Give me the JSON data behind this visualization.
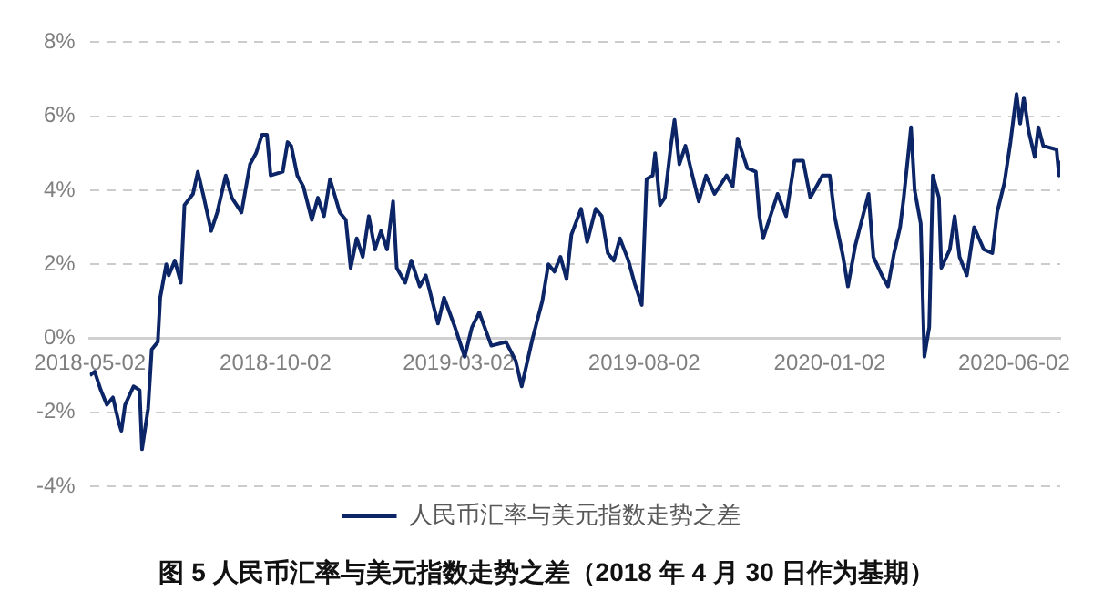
{
  "chart_data": {
    "type": "line",
    "title": "图 5 人民币汇率与美元指数走势之差（2018 年 4 月 30 日作为基期）",
    "xlim": [
      "2018-05-02",
      "2020-07-10"
    ],
    "xticks": [
      "2018-05-02",
      "2018-10-02",
      "2019-03-02",
      "2019-08-02",
      "2020-01-02",
      "2020-06-02"
    ],
    "ylim": [
      -4,
      8
    ],
    "yticks": [
      {
        "value": -4,
        "label": "-4%"
      },
      {
        "value": -2,
        "label": "-2%"
      },
      {
        "value": 0,
        "label": "0%"
      },
      {
        "value": 2,
        "label": "2%"
      },
      {
        "value": 4,
        "label": "4%"
      },
      {
        "value": 6,
        "label": "6%"
      },
      {
        "value": 8,
        "label": "8%"
      }
    ],
    "grid": "y",
    "legend": "bottom",
    "marker": "none",
    "line_style": "solid",
    "series": [
      {
        "name": "人民币汇率与美元指数走势之差",
        "color": "#0b2566",
        "x": [
          "2018-05-02",
          "2018-05-06",
          "2018-05-11",
          "2018-05-16",
          "2018-05-21",
          "2018-05-26",
          "2018-05-28",
          "2018-05-31",
          "2018-06-07",
          "2018-06-12",
          "2018-06-14",
          "2018-06-19",
          "2018-06-22",
          "2018-06-27",
          "2018-06-29",
          "2018-07-04",
          "2018-07-06",
          "2018-07-11",
          "2018-07-16",
          "2018-07-19",
          "2018-07-26",
          "2018-07-30",
          "2018-08-04",
          "2018-08-10",
          "2018-08-15",
          "2018-08-22",
          "2018-08-27",
          "2018-09-04",
          "2018-09-11",
          "2018-09-16",
          "2018-09-21",
          "2018-09-25",
          "2018-09-28",
          "2018-10-08",
          "2018-10-12",
          "2018-10-15",
          "2018-10-20",
          "2018-10-25",
          "2018-11-01",
          "2018-11-06",
          "2018-11-11",
          "2018-11-16",
          "2018-11-24",
          "2018-11-29",
          "2018-12-03",
          "2018-12-08",
          "2018-12-13",
          "2018-12-18",
          "2018-12-23",
          "2018-12-28",
          "2019-01-02",
          "2019-01-07",
          "2019-01-10",
          "2019-01-17",
          "2019-01-22",
          "2019-01-29",
          "2019-02-03",
          "2019-02-13",
          "2019-02-18",
          "2019-02-27",
          "2019-03-07",
          "2019-03-13",
          "2019-03-19",
          "2019-03-29",
          "2019-04-10",
          "2019-04-18",
          "2019-04-23",
          "2019-05-02",
          "2019-05-10",
          "2019-05-15",
          "2019-05-20",
          "2019-05-25",
          "2019-05-30",
          "2019-06-03",
          "2019-06-11",
          "2019-06-16",
          "2019-06-23",
          "2019-06-28",
          "2019-07-03",
          "2019-07-08",
          "2019-07-13",
          "2019-07-20",
          "2019-07-25",
          "2019-07-31",
          "2019-08-04",
          "2019-08-09",
          "2019-08-11",
          "2019-08-15",
          "2019-08-19",
          "2019-08-24",
          "2019-08-27",
          "2019-08-31",
          "2019-09-05",
          "2019-09-10",
          "2019-09-16",
          "2019-09-22",
          "2019-09-29",
          "2019-10-09",
          "2019-10-14",
          "2019-10-18",
          "2019-10-26",
          "2019-11-02",
          "2019-11-05",
          "2019-11-08",
          "2019-11-15",
          "2019-11-20",
          "2019-11-27",
          "2019-12-04",
          "2019-12-11",
          "2019-12-17",
          "2019-12-27",
          "2020-01-02",
          "2020-01-06",
          "2020-01-13",
          "2020-01-17",
          "2020-01-23",
          "2020-02-03",
          "2020-02-07",
          "2020-02-14",
          "2020-02-19",
          "2020-02-24",
          "2020-02-29",
          "2020-03-03",
          "2020-03-09",
          "2020-03-12",
          "2020-03-17",
          "2020-03-20",
          "2020-03-24",
          "2020-03-27",
          "2020-04-01",
          "2020-04-03",
          "2020-04-10",
          "2020-04-14",
          "2020-04-18",
          "2020-04-24",
          "2020-04-30",
          "2020-05-08",
          "2020-05-15",
          "2020-05-19",
          "2020-05-25",
          "2020-05-30",
          "2020-06-04",
          "2020-06-07",
          "2020-06-10",
          "2020-06-14",
          "2020-06-19",
          "2020-06-22",
          "2020-06-26",
          "2020-07-07",
          "2020-07-09",
          "2020-07-10"
        ],
        "values": [
          -1.0,
          -0.9,
          -1.4,
          -1.8,
          -1.6,
          -2.3,
          -2.5,
          -1.8,
          -1.3,
          -1.4,
          -3.0,
          -1.9,
          -0.3,
          -0.1,
          1.1,
          2.0,
          1.7,
          2.1,
          1.5,
          3.6,
          3.9,
          4.5,
          3.8,
          2.9,
          3.4,
          4.4,
          3.8,
          3.4,
          4.7,
          5.0,
          5.5,
          5.5,
          4.4,
          4.5,
          5.3,
          5.2,
          4.4,
          4.1,
          3.2,
          3.8,
          3.3,
          4.3,
          3.4,
          3.2,
          1.9,
          2.7,
          2.2,
          3.3,
          2.4,
          2.9,
          2.4,
          3.7,
          1.9,
          1.5,
          2.1,
          1.4,
          1.7,
          0.4,
          1.1,
          0.3,
          -0.5,
          0.3,
          0.7,
          -0.2,
          -0.1,
          -0.6,
          -1.3,
          0.0,
          1.0,
          2.0,
          1.8,
          2.2,
          1.6,
          2.8,
          3.5,
          2.6,
          3.5,
          3.3,
          2.3,
          2.1,
          2.7,
          2.1,
          1.5,
          0.9,
          4.3,
          4.4,
          5.0,
          3.6,
          3.8,
          5.2,
          5.9,
          4.7,
          5.2,
          4.5,
          3.7,
          4.4,
          3.9,
          4.4,
          4.1,
          5.4,
          4.6,
          4.5,
          3.3,
          2.7,
          3.4,
          3.9,
          3.3,
          4.8,
          4.8,
          3.8,
          4.4,
          4.4,
          3.3,
          2.2,
          1.4,
          2.5,
          3.9,
          2.2,
          1.7,
          1.4,
          2.3,
          3.0,
          3.8,
          5.7,
          4.0,
          3.1,
          -0.5,
          0.3,
          4.4,
          3.8,
          1.9,
          2.4,
          3.3,
          2.2,
          1.7,
          3.0,
          2.4,
          2.3,
          3.4,
          4.2,
          5.3,
          6.6,
          5.8,
          6.5,
          5.6,
          4.9,
          5.7,
          5.2,
          5.1,
          4.4,
          4.8
        ]
      }
    ]
  }
}
